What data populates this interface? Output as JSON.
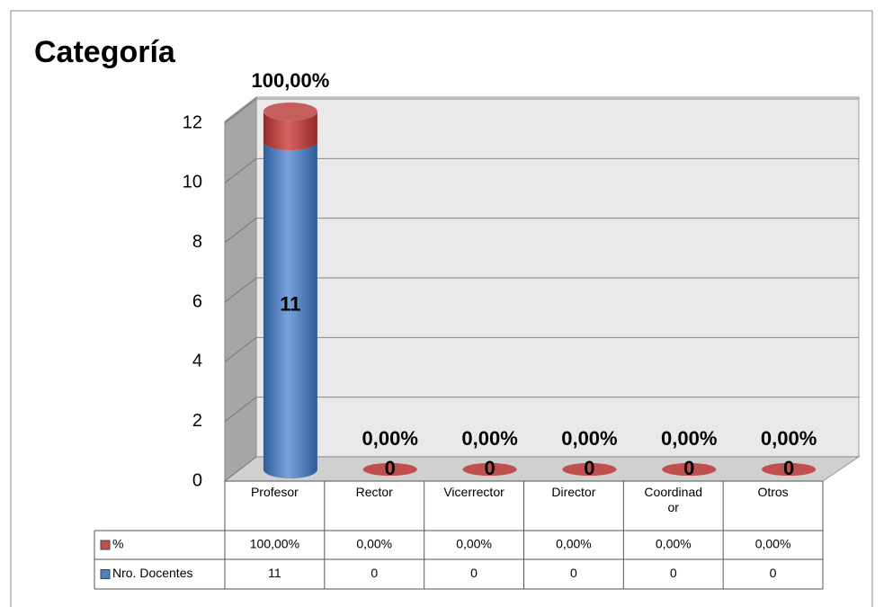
{
  "chart_data": {
    "type": "bar3d-stacked",
    "title": "Categoría",
    "categories": [
      "Profesor",
      "Rector",
      "Vicerrector",
      "Director",
      "Coordinador",
      "Otros"
    ],
    "series": [
      {
        "name": "Nro. Docentes",
        "color": "#4f81bd",
        "values": [
          11,
          0,
          0,
          0,
          0,
          0
        ]
      },
      {
        "name": "%",
        "color": "#c0504d",
        "values": [
          1,
          0,
          0,
          0,
          0,
          0
        ],
        "value_labels": [
          "100,00%",
          "0,00%",
          "0,00%",
          "0,00%",
          "0,00%",
          "0,00%"
        ]
      }
    ],
    "ylim": [
      0,
      12
    ],
    "yticks": [
      0,
      2,
      4,
      6,
      8,
      10,
      12
    ],
    "grid": true,
    "data_table": true
  }
}
